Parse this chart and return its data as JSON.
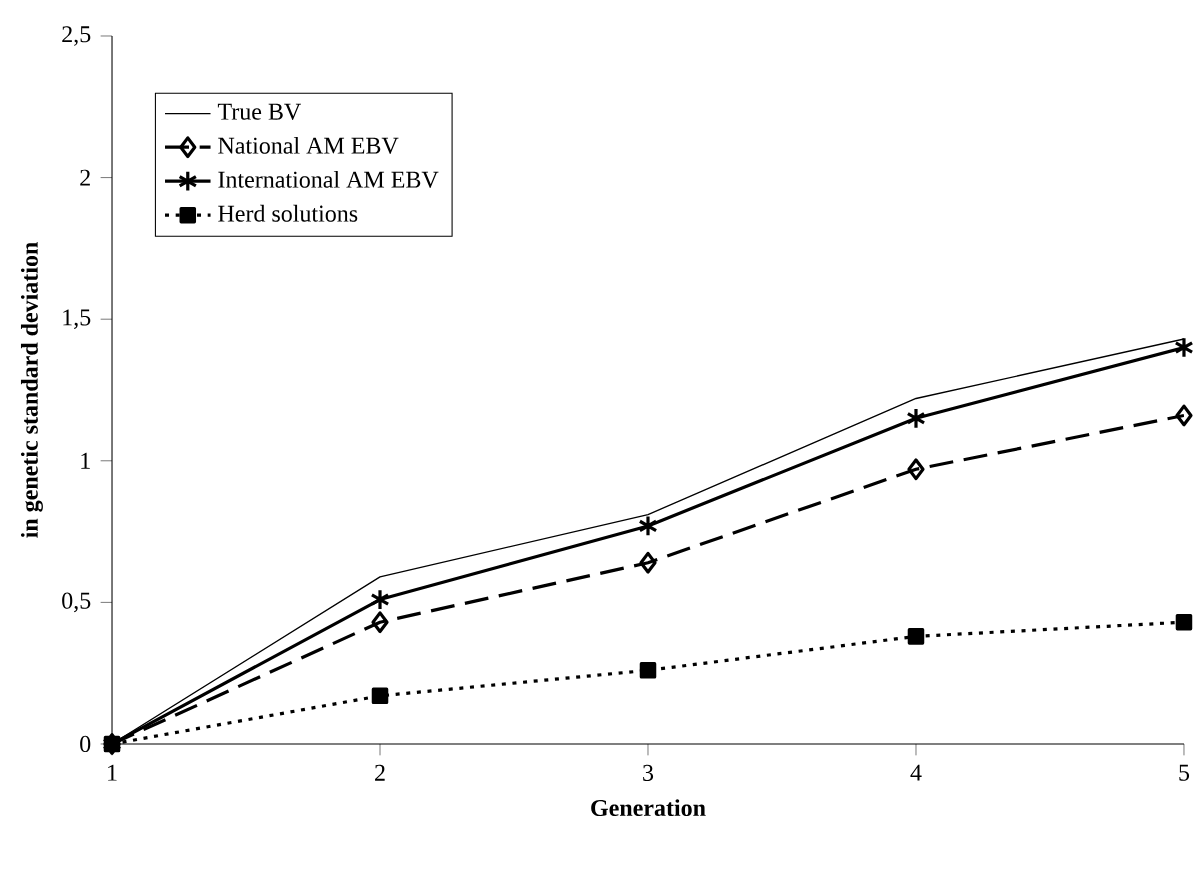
{
  "chart_data": {
    "type": "line",
    "xlabel": "Generation",
    "ylabel": "in genetic standard deviation",
    "x": [
      1,
      2,
      3,
      4,
      5
    ],
    "xlim": [
      1,
      5
    ],
    "xticks": [
      1,
      2,
      3,
      4,
      5
    ],
    "ylim": [
      0,
      2.5
    ],
    "yticks": [
      0,
      {
        "value": 0.5,
        "label": "0,5"
      },
      1,
      {
        "value": 1.5,
        "label": "1,5"
      },
      2,
      {
        "value": 2.5,
        "label": "2,5"
      }
    ],
    "grid": false,
    "legend": "top left",
    "series": [
      {
        "name": "True BV",
        "color": "#000000",
        "marker": "none",
        "line_style": "solid",
        "values": [
          0,
          0.59,
          0.81,
          1.22,
          1.43
        ]
      },
      {
        "name": "National AM EBV",
        "color": "#000000",
        "marker": "diamond",
        "line_style": "dashed",
        "values": [
          0,
          0.43,
          0.64,
          0.97,
          1.16
        ]
      },
      {
        "name": "International AM EBV",
        "color": "#000000",
        "marker": "cross",
        "line_style": "solid",
        "values": [
          0,
          0.51,
          0.77,
          1.15,
          1.4
        ]
      },
      {
        "name": "Herd solutions",
        "color": "#000000",
        "marker": "square",
        "line_style": "dotted",
        "values": [
          0,
          0.17,
          0.26,
          0.38,
          0.43
        ]
      }
    ]
  }
}
